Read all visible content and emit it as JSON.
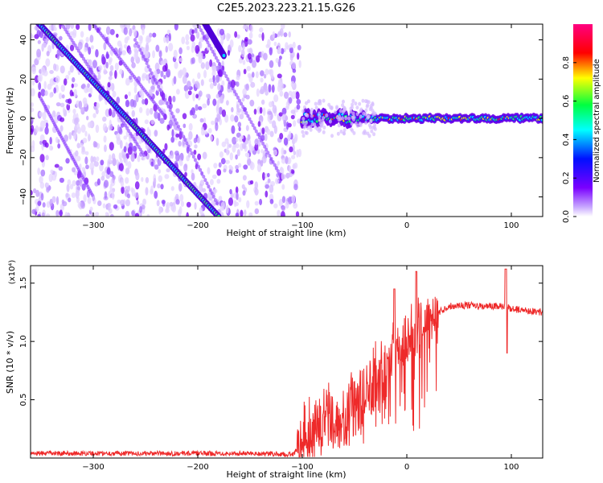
{
  "title": "C2E5.2023.223.21.15.G26",
  "chart_data": [
    {
      "type": "heatmap",
      "xlabel": "Height of straight line (km)",
      "ylabel": "Frequency (Hz)",
      "xlim": [
        -360,
        130
      ],
      "ylim": [
        -50,
        48
      ],
      "x_ticks": [
        -300,
        -200,
        -100,
        0,
        100
      ],
      "y_ticks": [
        -40,
        -20,
        0,
        20,
        40
      ],
      "colorbar": {
        "label": "Normalized spectral amplitude",
        "range": [
          0,
          1
        ],
        "ticks": [
          "0.0",
          "0.2",
          "0.4",
          "0.6",
          "0.8"
        ],
        "colormap": [
          "#ffffff",
          "#7a00ff",
          "#0010ff",
          "#00ffff",
          "#00ff40",
          "#ffff00",
          "#ff0000",
          "#ff0080"
        ]
      },
      "features": [
        {
          "name": "",
          "x": [
            -355,
            -180
          ],
          "y": [
            50,
            -50
          ]
        },
        {
          "name": "",
          "x": [
            -195,
            -175
          ],
          "y": [
            50,
            32
          ]
        },
        {
          "name": "",
          "x": [
            -100,
            130
          ],
          "y": [
            0,
            0
          ]
        }
      ]
    },
    {
      "type": "line",
      "xlabel": "Height of straight line (km)",
      "ylabel": "SNR (10 * v/v)",
      "scale_label": "(x10⁴)",
      "xlim": [
        -360,
        130
      ],
      "ylim": [
        0,
        1.65
      ],
      "x_ticks": [
        -300,
        -200,
        -100,
        0,
        100
      ],
      "y_ticks": [
        "0.5",
        "1.0",
        "1.5"
      ],
      "color": "#ee2a2a",
      "series": [
        {
          "x": [
            -360,
            -250,
            -150,
            -110,
            -100,
            -90,
            -80,
            -70,
            -60,
            -50,
            -40,
            -30,
            -20,
            -10,
            0,
            10,
            20,
            30,
            40,
            50,
            60,
            70,
            80,
            90,
            95,
            100,
            110,
            120,
            130
          ],
          "values": [
            0.04,
            0.04,
            0.04,
            0.03,
            0.1,
            0.25,
            0.3,
            0.35,
            0.4,
            0.5,
            0.55,
            0.7,
            0.8,
            0.9,
            1.0,
            1.12,
            1.2,
            1.25,
            1.3,
            1.31,
            1.31,
            1.3,
            1.3,
            1.3,
            1.3,
            1.28,
            1.27,
            1.26,
            1.25
          ]
        }
      ]
    }
  ]
}
